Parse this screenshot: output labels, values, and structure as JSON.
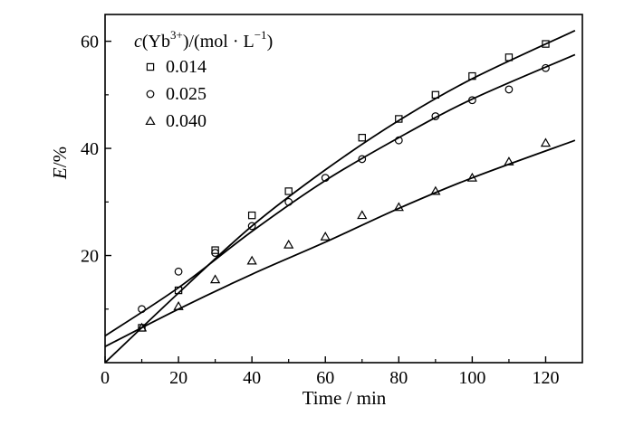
{
  "chart_data": {
    "type": "scatter",
    "xlabel": "Time / min",
    "ylabel_main": "E",
    "ylabel_unit": "/%",
    "xlim": [
      0,
      130
    ],
    "ylim": [
      0,
      65
    ],
    "xticks": [
      0,
      20,
      40,
      60,
      80,
      100,
      120
    ],
    "yticks": [
      20,
      40,
      60
    ],
    "grid": false,
    "legend": {
      "placement": "top-left",
      "title": {
        "c": "c",
        "species": "(Yb",
        "charge": "3+",
        "units": ")/(mol · L",
        "exp": "−1",
        "close": ")"
      }
    },
    "series": [
      {
        "name": "0.014",
        "marker": "square",
        "x": [
          10,
          20,
          30,
          40,
          50,
          70,
          80,
          90,
          100,
          110,
          120
        ],
        "y": [
          6.5,
          13.5,
          21,
          27.5,
          32,
          42,
          45.5,
          50,
          53.5,
          57,
          59.5
        ],
        "fit": [
          [
            0,
            0
          ],
          [
            20,
            13
          ],
          [
            40,
            25.5
          ],
          [
            60,
            36
          ],
          [
            80,
            45.2
          ],
          [
            100,
            53
          ],
          [
            128,
            62
          ]
        ]
      },
      {
        "name": "0.025",
        "marker": "circle",
        "x": [
          10,
          20,
          30,
          40,
          50,
          60,
          70,
          80,
          90,
          100,
          110,
          120
        ],
        "y": [
          10,
          17,
          20.5,
          25.5,
          30,
          34.5,
          38,
          41.5,
          46,
          49,
          51,
          55
        ],
        "fit": [
          [
            0,
            5
          ],
          [
            20,
            14
          ],
          [
            40,
            24.5
          ],
          [
            60,
            34
          ],
          [
            80,
            42
          ],
          [
            100,
            49.2
          ],
          [
            128,
            57.5
          ]
        ]
      },
      {
        "name": "0.040",
        "marker": "triangle",
        "x": [
          10,
          20,
          30,
          40,
          50,
          60,
          70,
          80,
          90,
          100,
          110,
          120
        ],
        "y": [
          6.5,
          10.5,
          15.5,
          19,
          22,
          23.5,
          27.5,
          29,
          32,
          34.5,
          37.5,
          41
        ],
        "fit": [
          [
            0,
            3
          ],
          [
            20,
            10
          ],
          [
            40,
            16.5
          ],
          [
            60,
            22.5
          ],
          [
            80,
            28.8
          ],
          [
            100,
            34.5
          ],
          [
            128,
            41.5
          ]
        ]
      }
    ]
  }
}
